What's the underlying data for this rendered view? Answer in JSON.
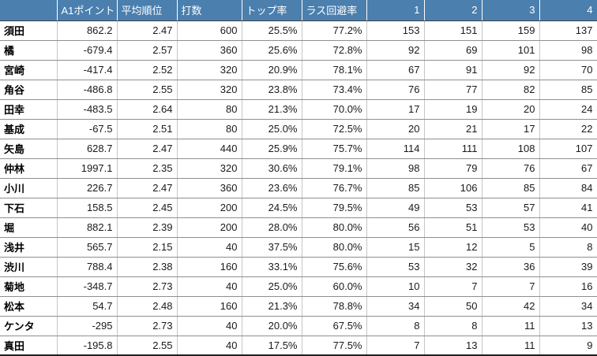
{
  "table": {
    "corner_label": "",
    "columns": [
      {
        "label": "A1ポイント",
        "align": "left"
      },
      {
        "label": "平均順位",
        "align": "left"
      },
      {
        "label": "打数",
        "align": "left"
      },
      {
        "label": "トップ率",
        "align": "left"
      },
      {
        "label": "ラス回避率",
        "align": "left"
      },
      {
        "label": "1",
        "align": "right"
      },
      {
        "label": "2",
        "align": "right"
      },
      {
        "label": "3",
        "align": "right"
      },
      {
        "label": "4",
        "align": "right"
      }
    ],
    "rows": [
      {
        "name": "須田",
        "values": [
          "862.2",
          "2.47",
          "600",
          "25.5%",
          "77.2%",
          "153",
          "151",
          "159",
          "137"
        ]
      },
      {
        "name": "橘",
        "values": [
          "-679.4",
          "2.57",
          "360",
          "25.6%",
          "72.8%",
          "92",
          "69",
          "101",
          "98"
        ]
      },
      {
        "name": "宮崎",
        "values": [
          "-417.4",
          "2.52",
          "320",
          "20.9%",
          "78.1%",
          "67",
          "91",
          "92",
          "70"
        ]
      },
      {
        "name": "角谷",
        "values": [
          "-486.8",
          "2.55",
          "320",
          "23.8%",
          "73.4%",
          "76",
          "77",
          "82",
          "85"
        ]
      },
      {
        "name": "田幸",
        "values": [
          "-483.5",
          "2.64",
          "80",
          "21.3%",
          "70.0%",
          "17",
          "19",
          "20",
          "24"
        ]
      },
      {
        "name": "基成",
        "values": [
          "-67.5",
          "2.51",
          "80",
          "25.0%",
          "72.5%",
          "20",
          "21",
          "17",
          "22"
        ]
      },
      {
        "name": "矢島",
        "values": [
          "628.7",
          "2.47",
          "440",
          "25.9%",
          "75.7%",
          "114",
          "111",
          "108",
          "107"
        ]
      },
      {
        "name": "仲林",
        "values": [
          "1997.1",
          "2.35",
          "320",
          "30.6%",
          "79.1%",
          "98",
          "79",
          "76",
          "67"
        ]
      },
      {
        "name": "小川",
        "values": [
          "226.7",
          "2.47",
          "360",
          "23.6%",
          "76.7%",
          "85",
          "106",
          "85",
          "84"
        ]
      },
      {
        "name": "下石",
        "values": [
          "158.5",
          "2.45",
          "200",
          "24.5%",
          "79.5%",
          "49",
          "53",
          "57",
          "41"
        ]
      },
      {
        "name": "堀",
        "values": [
          "882.1",
          "2.39",
          "200",
          "28.0%",
          "80.0%",
          "56",
          "51",
          "53",
          "40"
        ]
      },
      {
        "name": "浅井",
        "values": [
          "565.7",
          "2.15",
          "40",
          "37.5%",
          "80.0%",
          "15",
          "12",
          "5",
          "8"
        ]
      },
      {
        "name": "渋川",
        "values": [
          "788.4",
          "2.38",
          "160",
          "33.1%",
          "75.6%",
          "53",
          "32",
          "36",
          "39"
        ]
      },
      {
        "name": "菊地",
        "values": [
          "-348.7",
          "2.73",
          "40",
          "25.0%",
          "60.0%",
          "10",
          "7",
          "7",
          "16"
        ]
      },
      {
        "name": "松本",
        "values": [
          "54.7",
          "2.48",
          "160",
          "21.3%",
          "78.8%",
          "34",
          "50",
          "42",
          "34"
        ]
      },
      {
        "name": "ケンタ",
        "values": [
          "-295",
          "2.73",
          "40",
          "20.0%",
          "67.5%",
          "8",
          "8",
          "11",
          "13"
        ]
      },
      {
        "name": "真田",
        "values": [
          "-195.8",
          "2.55",
          "40",
          "17.5%",
          "77.5%",
          "7",
          "13",
          "11",
          "9"
        ]
      }
    ],
    "colors": {
      "header_bg": "#4a7fae",
      "header_text": "#ffffff",
      "corner_bg": "#141414",
      "cell_bg": "#ffffff",
      "grid_vertical": "#c6c6c6",
      "grid_horizontal": "#8f8f8f",
      "text": "#1a1a1a"
    }
  }
}
